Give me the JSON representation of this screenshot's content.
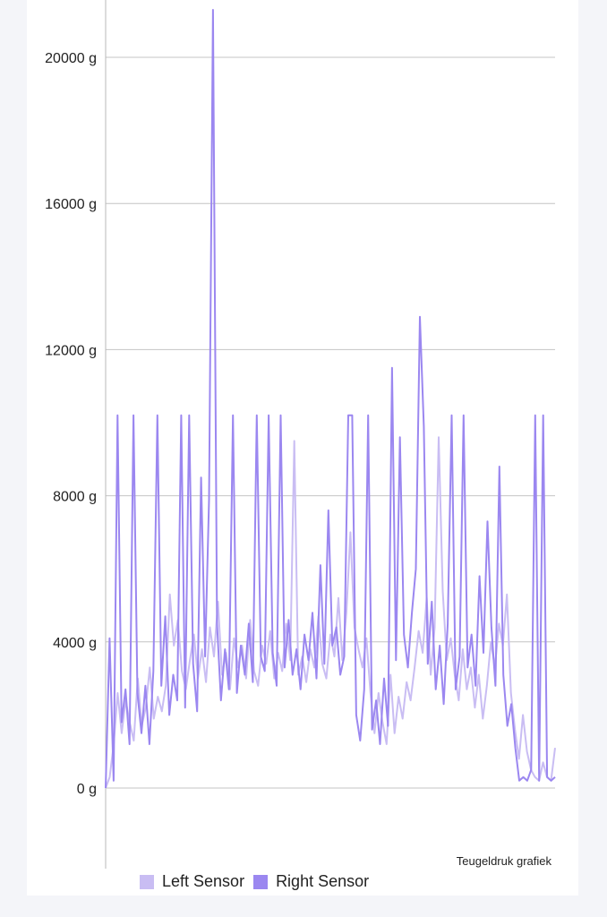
{
  "chart_data": {
    "type": "line",
    "title": "",
    "caption": "Teugeldruk grafiek",
    "xlabel": "",
    "ylabel": "",
    "ylim": [
      -2000,
      21500
    ],
    "y_ticks": [
      {
        "value": 0,
        "label": "0 g"
      },
      {
        "value": 4000,
        "label": "4000 g"
      },
      {
        "value": 8000,
        "label": "8000 g"
      },
      {
        "value": 12000,
        "label": "12000 g"
      },
      {
        "value": 16000,
        "label": "16000 g"
      },
      {
        "value": 20000,
        "label": "20000 g"
      }
    ],
    "grid": true,
    "legend_position": "bottom-left",
    "series": [
      {
        "name": "Left Sensor",
        "color": "#c9bdf3",
        "values": [
          0,
          300,
          1200,
          2600,
          1500,
          2400,
          1800,
          1300,
          3000,
          1700,
          2200,
          3300,
          1900,
          2500,
          2100,
          2800,
          5300,
          3900,
          4600,
          3200,
          2700,
          3500,
          4200,
          3000,
          3800,
          2900,
          4400,
          3600,
          5100,
          3100,
          3700,
          2700,
          4100,
          3300,
          3900,
          3000,
          4600,
          3200,
          2800,
          3900,
          3400,
          4300,
          3000,
          3700,
          3200,
          4500,
          3500,
          9500,
          3100,
          3600,
          2900,
          3800,
          3300,
          4700,
          3400,
          3000,
          4200,
          3600,
          5200,
          3500,
          4800,
          7000,
          4400,
          3800,
          3300,
          4100,
          2600,
          1500,
          2600,
          1800,
          1200,
          3100,
          1500,
          2500,
          1900,
          2900,
          2400,
          3300,
          4300,
          3700,
          5200,
          3100,
          4400,
          9600,
          5400,
          3500,
          4100,
          3100,
          2400,
          3800,
          2700,
          3300,
          2200,
          3100,
          1900,
          2800,
          4000,
          3300,
          4500,
          3900,
          5300,
          2600,
          1600,
          800,
          2000,
          1000,
          500,
          300,
          200,
          700,
          300,
          200,
          1100
        ]
      },
      {
        "name": "Right Sensor",
        "color": "#9b87f0",
        "values": [
          0,
          4100,
          200,
          10200,
          1800,
          2700,
          1200,
          10200,
          2600,
          1500,
          2800,
          1200,
          3200,
          10200,
          2800,
          4700,
          2000,
          3100,
          2400,
          10200,
          2200,
          10200,
          3400,
          2100,
          8500,
          3600,
          7900,
          21300,
          4500,
          2400,
          3800,
          2700,
          10200,
          2600,
          3900,
          3100,
          4500,
          2900,
          10200,
          3600,
          3200,
          10200,
          3700,
          2800,
          10200,
          3300,
          4600,
          3100,
          3800,
          2700,
          4200,
          3500,
          4800,
          3000,
          6100,
          3400,
          7600,
          3900,
          4400,
          3100,
          3600,
          10200,
          10200,
          2000,
          1300,
          2700,
          10200,
          1600,
          2400,
          1200,
          3000,
          1700,
          11500,
          3500,
          9600,
          4200,
          3300,
          4800,
          6000,
          12900,
          9900,
          3400,
          5100,
          2700,
          3900,
          2300,
          4500,
          10200,
          2700,
          3600,
          10200,
          3300,
          4200,
          2800,
          5800,
          3700,
          7300,
          4400,
          2800,
          8800,
          3100,
          1700,
          2300,
          1100,
          200,
          300,
          200,
          500,
          10200,
          200,
          10200,
          300,
          200,
          300
        ]
      }
    ]
  }
}
